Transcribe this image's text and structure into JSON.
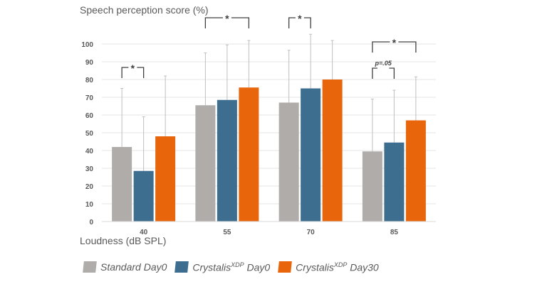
{
  "chart_data": {
    "type": "bar",
    "title": "",
    "ylabel": "Speech perception score (%)",
    "xlabel": "Loudness (dB SPL)",
    "categories": [
      "40",
      "55",
      "70",
      "85"
    ],
    "ylim": [
      0,
      100
    ],
    "yticks": [
      0,
      10,
      20,
      30,
      40,
      50,
      60,
      70,
      80,
      90,
      100
    ],
    "grid": true,
    "legend_position": "bottom",
    "series": [
      {
        "name": "Standard Day0",
        "name_base": "Standard Day0",
        "color": "#b0acaa",
        "values": [
          42,
          65.5,
          67,
          39.5
        ],
        "error_upper": [
          75,
          95,
          96.5,
          69
        ]
      },
      {
        "name": "CrystalisXDP Day0",
        "name_base": "Crystalis",
        "name_sup": "XDP",
        "name_tail": " Day0",
        "color": "#3d6e8f",
        "values": [
          28.5,
          68.5,
          75,
          44.5
        ],
        "error_upper": [
          59,
          99.5,
          105.5,
          74
        ]
      },
      {
        "name": "CrystalisXDP Day30",
        "name_base": "Crystalis",
        "name_sup": "XDP",
        "name_tail": " Day30",
        "color": "#e8650c",
        "values": [
          48,
          75.5,
          80,
          57
        ],
        "error_upper": [
          82,
          102,
          102,
          81.5
        ]
      }
    ],
    "annotations": [
      {
        "category": "40",
        "from_series": 0,
        "to_series": 1,
        "label": "*"
      },
      {
        "category": "55",
        "from_series": 0,
        "to_series": 2,
        "label": "*"
      },
      {
        "category": "70",
        "from_series": 0,
        "to_series": 1,
        "label": "*"
      },
      {
        "category": "85",
        "from_series": 0,
        "to_series": 2,
        "label": "*"
      },
      {
        "category": "85",
        "from_series": 0,
        "to_series": 1,
        "label": "p=.05"
      }
    ]
  }
}
